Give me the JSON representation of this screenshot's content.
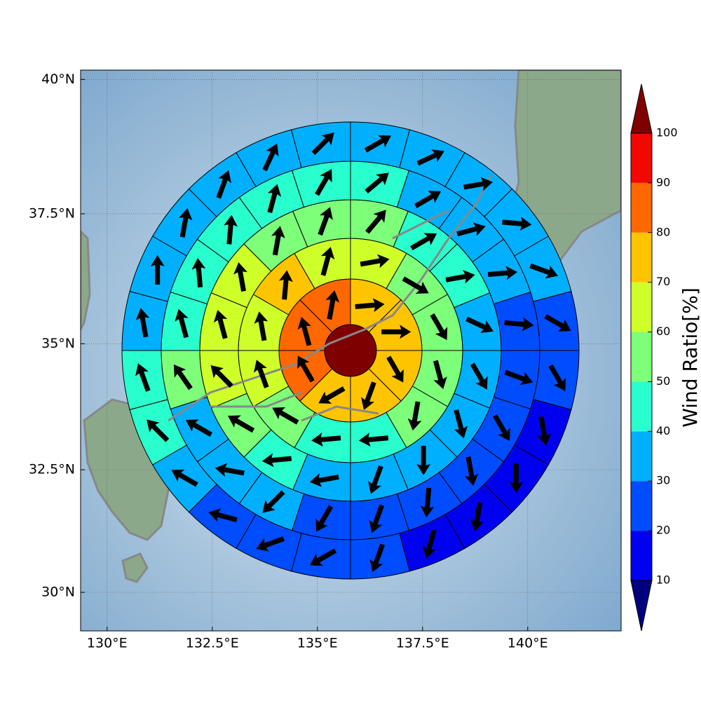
{
  "chart_data": {
    "type": "polar-grid-map",
    "projection": "mercator",
    "xlim": [
      129.37,
      142.22
    ],
    "ylim": [
      29.2,
      40.17
    ],
    "xticks": [
      {
        "value": 130,
        "label": "130°E"
      },
      {
        "value": 132.5,
        "label": "132.5°E"
      },
      {
        "value": 135,
        "label": "135°E"
      },
      {
        "value": 137.5,
        "label": "137.5°E"
      },
      {
        "value": 140,
        "label": "140°E"
      }
    ],
    "yticks": [
      {
        "value": 30,
        "label": "30°N"
      },
      {
        "value": 32.5,
        "label": "32.5°N"
      },
      {
        "value": 35,
        "label": "35°N"
      },
      {
        "value": 37.5,
        "label": "37.5°N"
      },
      {
        "value": 40,
        "label": "40°N"
      }
    ],
    "grid": true,
    "colorbar": {
      "label": "Wind Ratio[%]",
      "levels": [
        10,
        20,
        30,
        40,
        50,
        60,
        70,
        80,
        90,
        100
      ],
      "colors": [
        "#00007f",
        "#0000f0",
        "#004cff",
        "#00b0ff",
        "#29ffce",
        "#7dff7a",
        "#ceff29",
        "#ffc400",
        "#ff6800",
        "#f10800",
        "#7f0000"
      ],
      "extend": "both"
    },
    "rings": [
      {
        "values": [
          105
        ]
      },
      {
        "values": [
          75,
          75,
          75,
          72,
          75,
          85,
          85,
          85
        ],
        "directions": [
          85,
          90,
          150,
          200,
          240,
          330,
          345,
          10
        ]
      },
      {
        "values": [
          65,
          55,
          55,
          55,
          55,
          45,
          45,
          55,
          65,
          65,
          75,
          65
        ],
        "directions": [
          80,
          120,
          150,
          165,
          190,
          265,
          265,
          300,
          340,
          350,
          5,
          15
        ]
      },
      {
        "values": [
          55,
          45,
          45,
          35,
          35,
          35,
          35,
          35,
          35,
          45,
          55,
          65,
          65,
          65,
          55,
          55
        ],
        "directions": [
          40,
          60,
          80,
          115,
          150,
          165,
          180,
          200,
          260,
          265,
          300,
          315,
          345,
          350,
          10,
          20
        ]
      },
      {
        "values": [
          45,
          35,
          35,
          35,
          25,
          25,
          25,
          25,
          25,
          25,
          25,
          35,
          35,
          35,
          55,
          45,
          45,
          45,
          45,
          45
        ],
        "directions": [
          50,
          60,
          75,
          85,
          95,
          110,
          150,
          170,
          185,
          200,
          210,
          225,
          280,
          300,
          325,
          345,
          355,
          5,
          15,
          30
        ]
      },
      {
        "values": [
          35,
          35,
          35,
          35,
          35,
          25,
          25,
          15,
          15,
          15,
          15,
          25,
          25,
          25,
          25,
          35,
          45,
          45,
          35,
          35,
          35,
          35,
          35,
          35
        ],
        "directions": [
          60,
          65,
          80,
          95,
          110,
          120,
          150,
          170,
          180,
          190,
          195,
          200,
          240,
          250,
          285,
          300,
          315,
          340,
          350,
          0,
          10,
          20,
          25,
          45
        ]
      }
    ]
  }
}
